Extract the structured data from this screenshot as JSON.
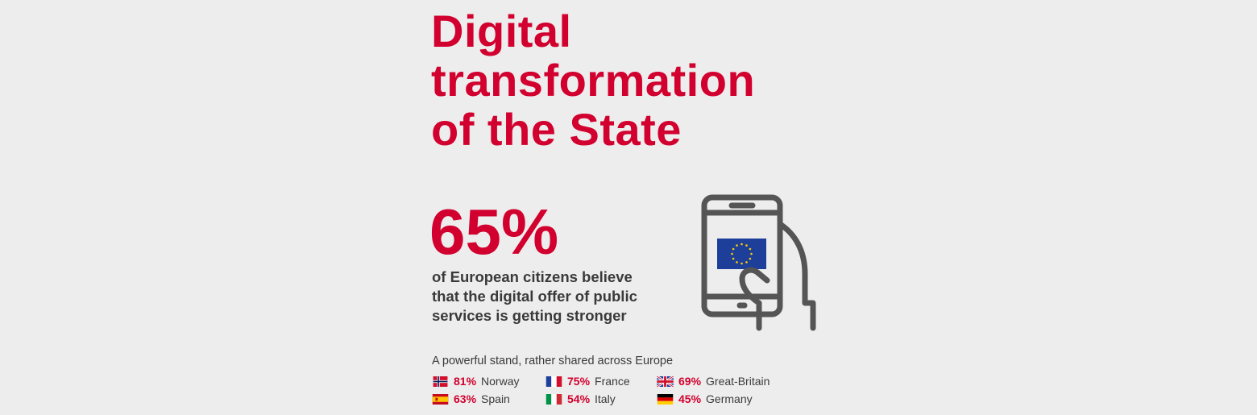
{
  "title": {
    "lines": [
      "Digital",
      "transformation",
      "of the State"
    ]
  },
  "headline": {
    "percent": "65%",
    "description_lines": [
      "of European citizens believe",
      "that the digital offer of public",
      "services is getting stronger"
    ]
  },
  "subheading": "A powerful stand, rather shared across Europe",
  "colors": {
    "accent": "#d2002e",
    "text": "#3a3a3a",
    "background": "#ededed",
    "icon": "#555555",
    "eu_blue": "#1d3f9a",
    "eu_star": "#ffcc00"
  },
  "stats": [
    {
      "percent": "81%",
      "country": "Norway",
      "flag": "norway-flag-icon"
    },
    {
      "percent": "75%",
      "country": "France",
      "flag": "france-flag-icon"
    },
    {
      "percent": "69%",
      "country": "Great-Britain",
      "flag": "uk-flag-icon"
    },
    {
      "percent": "63%",
      "country": "Spain",
      "flag": "spain-flag-icon"
    },
    {
      "percent": "54%",
      "country": "Italy",
      "flag": "italy-flag-icon"
    },
    {
      "percent": "45%",
      "country": "Germany",
      "flag": "germany-flag-icon"
    }
  ]
}
